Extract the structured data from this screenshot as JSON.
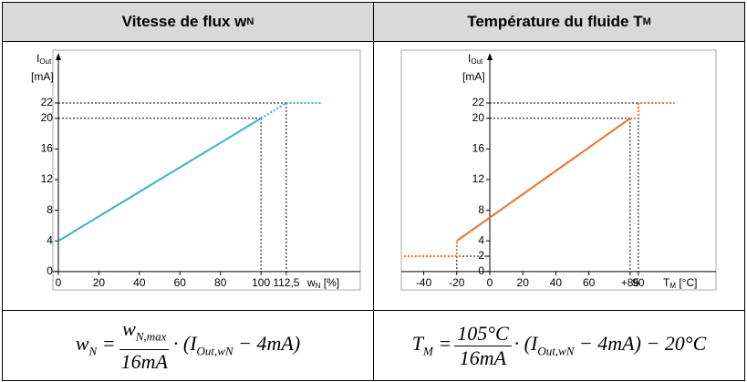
{
  "table": {
    "headers": [
      [
        {
          "text": "Vitesse de flux w"
        },
        {
          "text": "N",
          "sub": true
        }
      ],
      [
        {
          "text": "Température du fluide T"
        },
        {
          "text": "M",
          "sub": true
        }
      ]
    ],
    "formulas": [
      {
        "lhs": [
          {
            "text": "w"
          },
          {
            "text": "N",
            "sub": true
          },
          {
            "text": " = "
          }
        ],
        "num": [
          {
            "text": "w"
          },
          {
            "text": "N,max",
            "sub": true
          }
        ],
        "den": [
          {
            "text": "16mA"
          }
        ],
        "rhs": [
          {
            "text": " · (I"
          },
          {
            "text": "Out,wN",
            "sub": true
          },
          {
            "text": " − 4mA)"
          }
        ]
      },
      {
        "lhs": [
          {
            "text": "T"
          },
          {
            "text": "M",
            "sub": true
          },
          {
            "text": " = "
          }
        ],
        "num": [
          {
            "text": "105°C"
          }
        ],
        "den": [
          {
            "text": "16mA"
          }
        ],
        "rhs": [
          {
            "text": " · (I"
          },
          {
            "text": "Out,wN",
            "sub": true
          },
          {
            "text": " − 4mA) − 20°C"
          }
        ]
      }
    ]
  },
  "chart_data": [
    {
      "type": "line",
      "ylabel": [
        {
          "text": "I"
        },
        {
          "text": "Out",
          "sub": true
        }
      ],
      "yunit": "[mA]",
      "xlabel": [
        {
          "text": "w"
        },
        {
          "text": "N",
          "sub": true
        },
        {
          "text": " [%]"
        }
      ],
      "xlim": [
        -2.7,
        149
      ],
      "ylim": [
        -2.4,
        28.9
      ],
      "xticks": [
        0,
        20,
        40,
        60,
        80,
        100,
        {
          "value": 112.5,
          "label": "112,5"
        }
      ],
      "yticks": [
        0,
        4,
        8,
        12,
        16,
        20,
        22
      ],
      "color": "#36b0d0",
      "series": [
        {
          "style": "solid",
          "x": [
            0,
            100
          ],
          "values": [
            4,
            20
          ]
        },
        {
          "style": "dotted",
          "x": [
            100,
            112.5,
            130
          ],
          "values": [
            20,
            22,
            22
          ]
        }
      ],
      "guides": [
        {
          "x": 100,
          "y": 20
        },
        {
          "x": 112.5,
          "y": 22
        }
      ]
    },
    {
      "type": "line",
      "ylabel": [
        {
          "text": "I"
        },
        {
          "text": "Out",
          "sub": true
        }
      ],
      "yunit": "[mA]",
      "xlabel": [
        {
          "text": "T"
        },
        {
          "text": "M",
          "sub": true
        },
        {
          "text": " [°C]"
        }
      ],
      "xlim": [
        -53.6,
        137
      ],
      "ylim": [
        -2.4,
        28.9
      ],
      "xticks": [
        -40,
        -20,
        0,
        20,
        40,
        60,
        {
          "value": 85,
          "label": "+85"
        },
        90
      ],
      "yticks": [
        0,
        2,
        4,
        8,
        12,
        16,
        20,
        22
      ],
      "color": "#e8722a",
      "series": [
        {
          "style": "dotted",
          "x": [
            -52,
            -20,
            -20
          ],
          "values": [
            2,
            2,
            4
          ]
        },
        {
          "style": "solid",
          "x": [
            -20,
            85
          ],
          "values": [
            4,
            20
          ]
        },
        {
          "style": "dotted",
          "x": [
            85,
            90,
            90,
            112
          ],
          "values": [
            20,
            20,
            22,
            22
          ]
        }
      ],
      "guides": [
        {
          "x": 85,
          "y": 20
        },
        {
          "x": 90,
          "y": 22
        },
        {
          "x": -20,
          "y": 2
        }
      ]
    }
  ]
}
